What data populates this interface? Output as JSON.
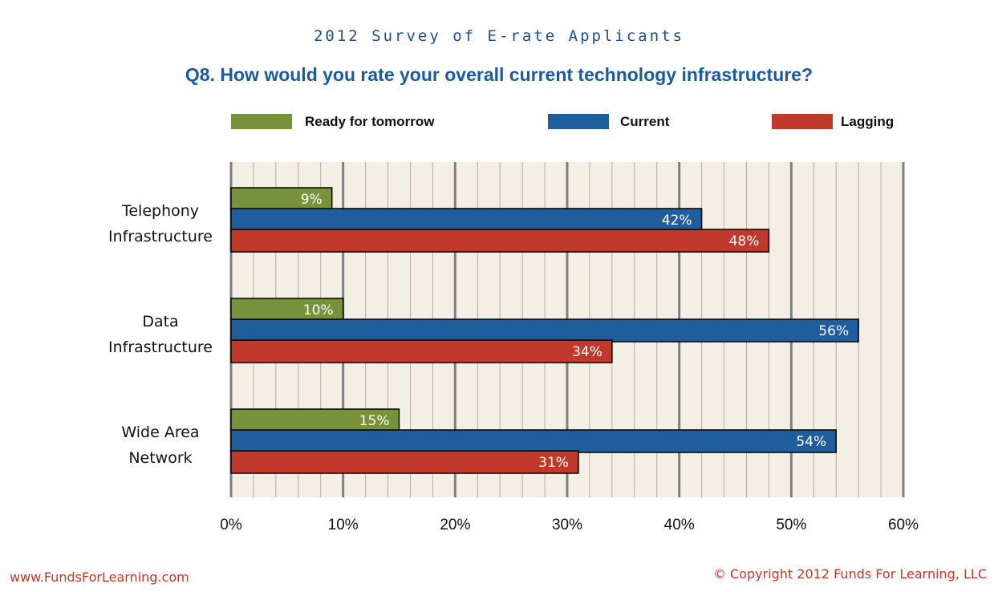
{
  "header": {
    "survey_title": "2012 Survey of E-rate Applicants",
    "question": "Q8. How would you rate your overall current technology infrastructure?"
  },
  "footer": {
    "website": "www.FundsForLearning.com",
    "copyright": "© Copyright 2012  Funds For Learning, LLC"
  },
  "chart_data": {
    "type": "bar",
    "orientation": "horizontal",
    "categories": [
      [
        "Telephony",
        "Infrastructure"
      ],
      [
        "Data",
        "Infrastructure"
      ],
      [
        "Wide Area",
        "Network"
      ]
    ],
    "series": [
      {
        "name": "Ready for tomorrow",
        "color": "#76933c",
        "values": [
          9,
          10,
          15
        ],
        "labels": [
          "9%",
          "10%",
          "15%"
        ]
      },
      {
        "name": "Current",
        "color": "#1f5d9c",
        "values": [
          42,
          56,
          54
        ],
        "labels": [
          "42%",
          "56%",
          "54%"
        ]
      },
      {
        "name": "Lagging",
        "color": "#c0392b",
        "values": [
          48,
          34,
          31
        ],
        "labels": [
          "48%",
          "34%",
          "31%"
        ]
      }
    ],
    "xlim": [
      0,
      60
    ],
    "xticks": [
      "0%",
      "10%",
      "20%",
      "30%",
      "40%",
      "50%",
      "60%"
    ],
    "grid": true,
    "legend_position": "top"
  }
}
